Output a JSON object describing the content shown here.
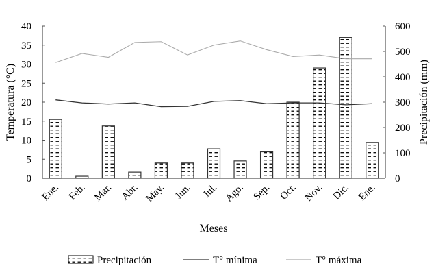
{
  "chart_data": {
    "type": "bar+line",
    "categories": [
      "Ene.",
      "Feb.",
      "Mar.",
      "Abr.",
      "May.",
      "Jun.",
      "Jul.",
      "Ago.",
      "Sep.",
      "Oct.",
      "Nov.",
      "Dic.",
      "Ene."
    ],
    "xlabel": "Meses",
    "ylabel_left": "Temperatura (°C)",
    "ylabel_right": "Precipitación (mm)",
    "ylim_left": [
      0,
      40
    ],
    "yticks_left": [
      0,
      5,
      10,
      15,
      20,
      25,
      30,
      35,
      40
    ],
    "ylim_right": [
      0,
      600
    ],
    "yticks_right": [
      0,
      100,
      200,
      300,
      400,
      500,
      600
    ],
    "grid": false,
    "legend_position": "bottom",
    "series": [
      {
        "name": "Precipitación",
        "type": "bar",
        "axis": "right",
        "values": [
          232,
          8,
          206,
          24,
          60,
          60,
          116,
          68,
          104,
          300,
          435,
          555,
          141
        ]
      },
      {
        "name": "T° mínima",
        "type": "line",
        "axis": "left",
        "color": "#333333",
        "values": [
          20.6,
          19.8,
          19.5,
          19.8,
          18.8,
          18.9,
          20.2,
          20.4,
          19.6,
          19.8,
          19.8,
          19.3,
          19.6
        ]
      },
      {
        "name": "T° máxima",
        "type": "line",
        "axis": "left",
        "color": "#aaaaaa",
        "values": [
          30.4,
          32.8,
          31.8,
          35.7,
          35.9,
          32.4,
          35.0,
          36.1,
          33.8,
          32.0,
          32.4,
          31.4,
          31.4
        ]
      }
    ]
  }
}
